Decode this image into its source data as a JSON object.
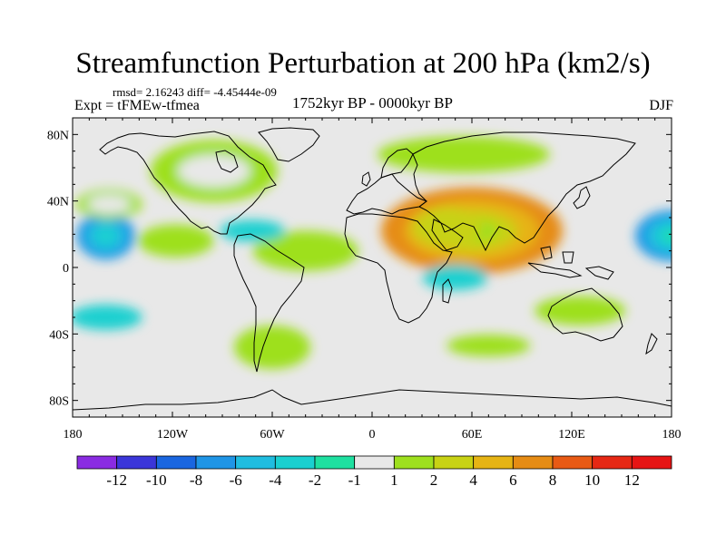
{
  "title": "Streamfunction Perturbation at 200 hPa (km2/s)",
  "stats": "rmsd= 2.16243 diff= -4.45444e-09",
  "experiment": "Expt = tFMEw-tfmea",
  "period": "1752kyr BP - 0000kyr BP",
  "season": "DJF",
  "map": {
    "projection": "cylindrical equidistant",
    "lon_range": [
      -180,
      180
    ],
    "lat_range": [
      -90,
      90
    ],
    "x_ticks": [
      {
        "lon": -180,
        "label": "180"
      },
      {
        "lon": -120,
        "label": "120W"
      },
      {
        "lon": -60,
        "label": "60W"
      },
      {
        "lon": 0,
        "label": "0"
      },
      {
        "lon": 60,
        "label": "60E"
      },
      {
        "lon": 120,
        "label": "120E"
      },
      {
        "lon": 180,
        "label": "180"
      }
    ],
    "y_ticks": [
      {
        "lat": 80,
        "label": "80N"
      },
      {
        "lat": 40,
        "label": "40N"
      },
      {
        "lat": 0,
        "label": "0"
      },
      {
        "lat": -40,
        "label": "40S"
      },
      {
        "lat": -80,
        "label": "80S"
      }
    ],
    "background_color": "#e8e8e8",
    "coastline_color": "#000000"
  },
  "field_regions": [
    {
      "name": "pacific-west-low",
      "lon": 180,
      "lat": 19,
      "value": -7
    },
    {
      "name": "pacific-east-low",
      "lon": -160,
      "lat": 19,
      "value": -6
    },
    {
      "name": "pacific-north-high",
      "lon": -158,
      "lat": 38,
      "value": 3
    },
    {
      "name": "north-america-high",
      "lon": -95,
      "lat": 58,
      "value": 3
    },
    {
      "name": "south-asia-high",
      "lon": 60,
      "lat": 22,
      "value": 9
    },
    {
      "name": "arabia-high",
      "lon": 45,
      "lat": 24,
      "value": 5
    },
    {
      "name": "eurasia-north-high",
      "lon": 55,
      "lat": 68,
      "value": 2
    },
    {
      "name": "east-pacific-high",
      "lon": -118,
      "lat": 16,
      "value": 3
    },
    {
      "name": "atlantic-high",
      "lon": -40,
      "lat": 10,
      "value": 2
    },
    {
      "name": "mid-atlantic-low",
      "lon": -72,
      "lat": 22,
      "value": -3
    },
    {
      "name": "india-ocean-low",
      "lon": 50,
      "lat": -6,
      "value": -3
    },
    {
      "name": "south-atlantic-high",
      "lon": -60,
      "lat": -48,
      "value": 2
    },
    {
      "name": "south-pacific-low",
      "lon": -160,
      "lat": -30,
      "value": -3
    },
    {
      "name": "australia-high",
      "lon": 125,
      "lat": -26,
      "value": 2
    },
    {
      "name": "southern-ocean-high",
      "lon": 70,
      "lat": -47,
      "value": 2
    }
  ],
  "colorbar": {
    "levels": [
      {
        "label": "-12",
        "color": "#8a2be2"
      },
      {
        "label": "-10",
        "color": "#3b36d9"
      },
      {
        "label": "-8",
        "color": "#1a66e0"
      },
      {
        "label": "-6",
        "color": "#1f95e6"
      },
      {
        "label": "-4",
        "color": "#20bde0"
      },
      {
        "label": "-2",
        "color": "#1ad0d0"
      },
      {
        "label": "-1",
        "color": "#1ee0a0"
      },
      {
        "label": "1",
        "color": "#e8e8e8"
      },
      {
        "label": "2",
        "color": "#9ee01e"
      },
      {
        "label": "4",
        "color": "#c8d214"
      },
      {
        "label": "6",
        "color": "#e6b414"
      },
      {
        "label": "8",
        "color": "#e68c14"
      },
      {
        "label": "10",
        "color": "#e85a14"
      },
      {
        "label": "12",
        "color": "#e62814"
      }
    ],
    "end_color": "#e61414"
  }
}
